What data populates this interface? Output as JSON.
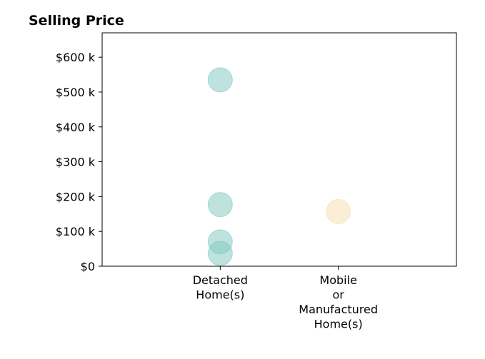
{
  "chart_data": {
    "type": "scatter",
    "title": "Selling Price",
    "xlabel": "",
    "ylabel": "",
    "categories": [
      [
        "Detached",
        "Home(s)"
      ],
      [
        "Mobile",
        "or",
        "Manufactured",
        "Home(s)"
      ]
    ],
    "y_ticks": [
      {
        "value": 0,
        "label": "$0"
      },
      {
        "value": 100000,
        "label": "$100 k"
      },
      {
        "value": 200000,
        "label": "$200 k"
      },
      {
        "value": 300000,
        "label": "$300 k"
      },
      {
        "value": 400000,
        "label": "$400 k"
      },
      {
        "value": 500000,
        "label": "$500 k"
      },
      {
        "value": 600000,
        "label": "$600 k"
      }
    ],
    "ylim": [
      0,
      670000
    ],
    "grid": false,
    "series": [
      {
        "category_index": 0,
        "color": "#7ec8c0",
        "values": [
          535000,
          177000,
          70000,
          37000
        ]
      },
      {
        "category_index": 1,
        "color": "#f5dfae",
        "values": [
          157000
        ]
      }
    ]
  }
}
